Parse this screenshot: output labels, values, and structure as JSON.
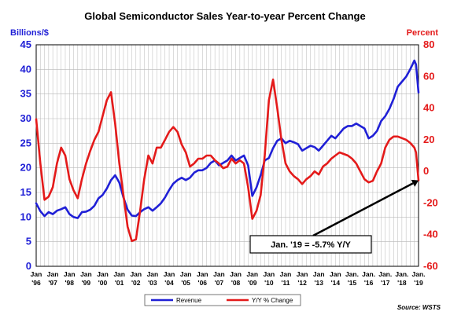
{
  "chart_data": {
    "type": "line",
    "title": "Global Semiconductor Sales Year-to-year Percent Change",
    "y_left_label": "Billions/$",
    "y_right_label": "Percent",
    "y_left_range": [
      0,
      45
    ],
    "y_left_ticks": [
      "0",
      "5",
      "10",
      "15",
      "20",
      "25",
      "30",
      "35",
      "40",
      "45"
    ],
    "y_right_range": [
      -60,
      80
    ],
    "y_right_ticks": [
      "-60",
      "-40",
      "-20",
      "0",
      "20",
      "40",
      "60",
      "80"
    ],
    "x_ticks": [
      {
        "top": "Jan",
        "bottom": "'96"
      },
      {
        "top": "Jan",
        "bottom": "'97"
      },
      {
        "top": "Jan",
        "bottom": "'98"
      },
      {
        "top": "Jan",
        "bottom": "'99"
      },
      {
        "top": "Jan",
        "bottom": "'00"
      },
      {
        "top": "Jan",
        "bottom": "'01"
      },
      {
        "top": "Jan",
        "bottom": "'02"
      },
      {
        "top": "Jan",
        "bottom": "'03"
      },
      {
        "top": "Jan",
        "bottom": "'04"
      },
      {
        "top": "Jan",
        "bottom": "'05"
      },
      {
        "top": "Jan",
        "bottom": "'06"
      },
      {
        "top": "Jan",
        "bottom": "'07"
      },
      {
        "top": "Jan",
        "bottom": "'08"
      },
      {
        "top": "Jan",
        "bottom": "'09"
      },
      {
        "top": "Jan",
        "bottom": "'10"
      },
      {
        "top": "Jan",
        "bottom": "'11"
      },
      {
        "top": "Jan",
        "bottom": "'12"
      },
      {
        "top": "Jan",
        "bottom": "'13"
      },
      {
        "top": "Jan",
        "bottom": "'14"
      },
      {
        "top": "Jan.",
        "bottom": "'15"
      },
      {
        "top": "Jan.",
        "bottom": "'16"
      },
      {
        "top": "Jan.",
        "bottom": "'17"
      },
      {
        "top": "Jan.",
        "bottom": "'18"
      },
      {
        "top": "Jan.",
        "bottom": "'19"
      }
    ],
    "grid": true,
    "legend_position": "bottom",
    "series": [
      {
        "name": "Revenue",
        "axis": "left",
        "color": "#1f1fd6",
        "points": [
          [
            1996.0,
            12.8
          ],
          [
            1996.25,
            11.2
          ],
          [
            1996.5,
            10.2
          ],
          [
            1996.75,
            11.0
          ],
          [
            1997.0,
            10.6
          ],
          [
            1997.25,
            11.3
          ],
          [
            1997.5,
            11.6
          ],
          [
            1997.75,
            12.0
          ],
          [
            1998.0,
            10.6
          ],
          [
            1998.25,
            10.0
          ],
          [
            1998.5,
            9.8
          ],
          [
            1998.75,
            11.0
          ],
          [
            1999.0,
            11.1
          ],
          [
            1999.25,
            11.5
          ],
          [
            1999.5,
            12.3
          ],
          [
            1999.75,
            13.8
          ],
          [
            2000.0,
            14.5
          ],
          [
            2000.25,
            15.8
          ],
          [
            2000.5,
            17.5
          ],
          [
            2000.75,
            18.5
          ],
          [
            2001.0,
            17.0
          ],
          [
            2001.25,
            14.0
          ],
          [
            2001.5,
            11.5
          ],
          [
            2001.75,
            10.3
          ],
          [
            2002.0,
            10.2
          ],
          [
            2002.25,
            11.0
          ],
          [
            2002.5,
            11.6
          ],
          [
            2002.75,
            12.0
          ],
          [
            2003.0,
            11.3
          ],
          [
            2003.25,
            12.0
          ],
          [
            2003.5,
            12.8
          ],
          [
            2003.75,
            14.0
          ],
          [
            2004.0,
            15.5
          ],
          [
            2004.25,
            16.8
          ],
          [
            2004.5,
            17.5
          ],
          [
            2004.75,
            18.0
          ],
          [
            2005.0,
            17.5
          ],
          [
            2005.25,
            18.0
          ],
          [
            2005.5,
            19.0
          ],
          [
            2005.75,
            19.5
          ],
          [
            2006.0,
            19.5
          ],
          [
            2006.25,
            20.0
          ],
          [
            2006.5,
            21.0
          ],
          [
            2006.75,
            21.5
          ],
          [
            2007.0,
            20.5
          ],
          [
            2007.25,
            21.0
          ],
          [
            2007.5,
            21.5
          ],
          [
            2007.75,
            22.5
          ],
          [
            2008.0,
            21.5
          ],
          [
            2008.25,
            22.0
          ],
          [
            2008.5,
            22.5
          ],
          [
            2008.75,
            20.5
          ],
          [
            2009.0,
            14.3
          ],
          [
            2009.25,
            16.0
          ],
          [
            2009.5,
            18.5
          ],
          [
            2009.75,
            21.5
          ],
          [
            2010.0,
            22.0
          ],
          [
            2010.25,
            24.0
          ],
          [
            2010.5,
            25.5
          ],
          [
            2010.75,
            26.0
          ],
          [
            2011.0,
            25.0
          ],
          [
            2011.25,
            25.5
          ],
          [
            2011.5,
            25.2
          ],
          [
            2011.75,
            24.8
          ],
          [
            2012.0,
            23.5
          ],
          [
            2012.25,
            24.0
          ],
          [
            2012.5,
            24.5
          ],
          [
            2012.75,
            24.2
          ],
          [
            2013.0,
            23.5
          ],
          [
            2013.25,
            24.5
          ],
          [
            2013.5,
            25.5
          ],
          [
            2013.75,
            26.5
          ],
          [
            2014.0,
            26.0
          ],
          [
            2014.25,
            27.0
          ],
          [
            2014.5,
            28.0
          ],
          [
            2014.75,
            28.5
          ],
          [
            2015.0,
            28.5
          ],
          [
            2015.25,
            29.0
          ],
          [
            2015.5,
            28.5
          ],
          [
            2015.75,
            28.0
          ],
          [
            2016.0,
            26.0
          ],
          [
            2016.25,
            26.5
          ],
          [
            2016.5,
            27.5
          ],
          [
            2016.75,
            29.5
          ],
          [
            2017.0,
            30.5
          ],
          [
            2017.25,
            32.0
          ],
          [
            2017.5,
            34.0
          ],
          [
            2017.75,
            36.5
          ],
          [
            2018.0,
            37.5
          ],
          [
            2018.25,
            38.5
          ],
          [
            2018.5,
            40.0
          ],
          [
            2018.75,
            41.8
          ],
          [
            2018.85,
            41.0
          ],
          [
            2019.0,
            35.3
          ]
        ]
      },
      {
        "name": "Y/Y % Change",
        "axis": "right",
        "color": "#e41a1a",
        "points": [
          [
            1996.0,
            33
          ],
          [
            1996.25,
            5
          ],
          [
            1996.5,
            -18
          ],
          [
            1996.75,
            -16
          ],
          [
            1997.0,
            -10
          ],
          [
            1997.25,
            5
          ],
          [
            1997.5,
            15
          ],
          [
            1997.75,
            10
          ],
          [
            1998.0,
            -5
          ],
          [
            1998.25,
            -12
          ],
          [
            1998.5,
            -17
          ],
          [
            1998.75,
            -5
          ],
          [
            1999.0,
            5
          ],
          [
            1999.25,
            13
          ],
          [
            1999.5,
            20
          ],
          [
            1999.75,
            25
          ],
          [
            2000.0,
            35
          ],
          [
            2000.25,
            45
          ],
          [
            2000.5,
            50
          ],
          [
            2000.75,
            30
          ],
          [
            2001.0,
            5
          ],
          [
            2001.25,
            -15
          ],
          [
            2001.5,
            -35
          ],
          [
            2001.75,
            -44
          ],
          [
            2002.0,
            -43
          ],
          [
            2002.25,
            -25
          ],
          [
            2002.5,
            -5
          ],
          [
            2002.75,
            10
          ],
          [
            2003.0,
            5
          ],
          [
            2003.25,
            15
          ],
          [
            2003.5,
            15
          ],
          [
            2003.75,
            20
          ],
          [
            2004.0,
            25
          ],
          [
            2004.25,
            28
          ],
          [
            2004.5,
            25
          ],
          [
            2004.75,
            17
          ],
          [
            2005.0,
            12
          ],
          [
            2005.25,
            3
          ],
          [
            2005.5,
            5
          ],
          [
            2005.75,
            8
          ],
          [
            2006.0,
            8
          ],
          [
            2006.25,
            10
          ],
          [
            2006.5,
            10
          ],
          [
            2006.75,
            7
          ],
          [
            2007.0,
            5
          ],
          [
            2007.25,
            2
          ],
          [
            2007.5,
            3
          ],
          [
            2007.75,
            8
          ],
          [
            2008.0,
            5
          ],
          [
            2008.25,
            7
          ],
          [
            2008.5,
            5
          ],
          [
            2008.75,
            -10
          ],
          [
            2009.0,
            -30
          ],
          [
            2009.25,
            -25
          ],
          [
            2009.5,
            -15
          ],
          [
            2009.75,
            10
          ],
          [
            2010.0,
            45
          ],
          [
            2010.25,
            58
          ],
          [
            2010.5,
            40
          ],
          [
            2010.75,
            20
          ],
          [
            2011.0,
            5
          ],
          [
            2011.25,
            0
          ],
          [
            2011.5,
            -3
          ],
          [
            2011.75,
            -5
          ],
          [
            2012.0,
            -8
          ],
          [
            2012.25,
            -5
          ],
          [
            2012.5,
            -3
          ],
          [
            2012.75,
            0
          ],
          [
            2013.0,
            -2
          ],
          [
            2013.25,
            3
          ],
          [
            2013.5,
            5
          ],
          [
            2013.75,
            8
          ],
          [
            2014.0,
            10
          ],
          [
            2014.25,
            12
          ],
          [
            2014.5,
            11
          ],
          [
            2014.75,
            10
          ],
          [
            2015.0,
            8
          ],
          [
            2015.25,
            5
          ],
          [
            2015.5,
            0
          ],
          [
            2015.75,
            -5
          ],
          [
            2016.0,
            -7
          ],
          [
            2016.25,
            -6
          ],
          [
            2016.5,
            0
          ],
          [
            2016.75,
            5
          ],
          [
            2017.0,
            15
          ],
          [
            2017.25,
            20
          ],
          [
            2017.5,
            22
          ],
          [
            2017.75,
            22
          ],
          [
            2018.0,
            21
          ],
          [
            2018.25,
            20
          ],
          [
            2018.5,
            18
          ],
          [
            2018.75,
            15
          ],
          [
            2018.85,
            12
          ],
          [
            2019.0,
            -5.7
          ]
        ]
      }
    ],
    "annotation": {
      "text": "Jan. '19 = -5.7% Y/Y",
      "x": 2019.0,
      "y": -5.7,
      "axis": "right"
    },
    "source": "Source: WSTS"
  },
  "colors": {
    "left_axis": "#1f1fd6",
    "right_axis": "#e41a1a",
    "grid": "#b8b8b8"
  }
}
